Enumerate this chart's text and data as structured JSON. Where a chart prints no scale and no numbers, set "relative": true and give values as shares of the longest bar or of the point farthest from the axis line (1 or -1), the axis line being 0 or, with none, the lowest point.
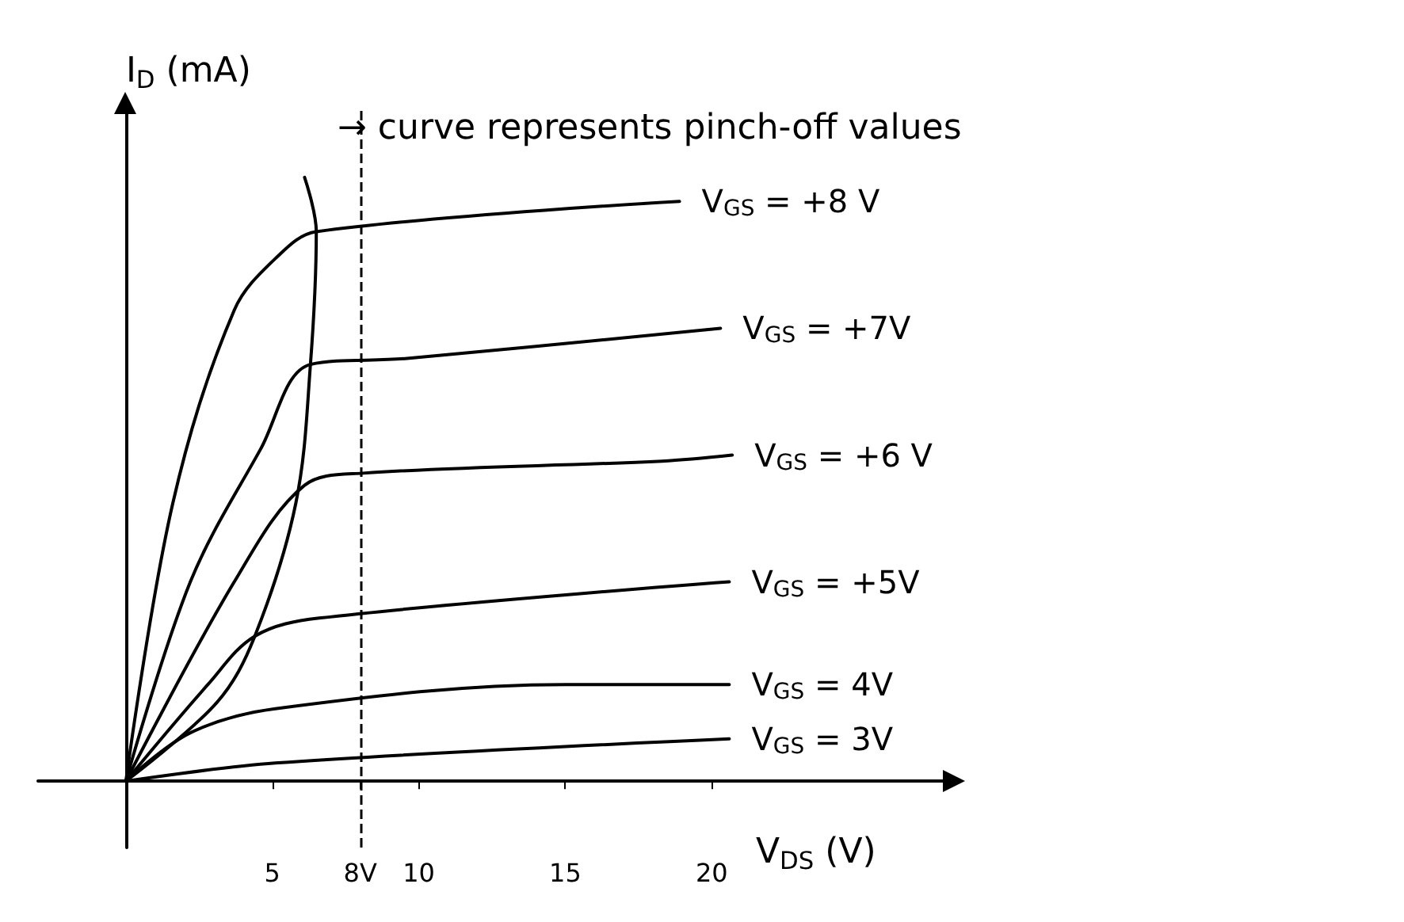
{
  "chart_data": {
    "type": "line",
    "relative": true,
    "xlabel": "V$_{DS}$ (V)",
    "ylabel": "I$_{D}$ (mA)",
    "xlim": [
      -3,
      28
    ],
    "xticks": [
      5,
      {
        "value": 8,
        "label": "8V"
      },
      10,
      15,
      20
    ],
    "annotations": [
      "→ curve represents pinch-off values"
    ],
    "ref_lines": [
      {
        "axis": "x",
        "value": 8,
        "line_style": "dashed",
        "color": "#000000"
      }
    ],
    "line_style": "solid",
    "series": [
      {
        "name": "V$_{GS}$ = +8 V",
        "color": "#000000",
        "x": [
          0,
          1.6,
          3.7,
          5.2,
          6.5,
          18.9
        ],
        "values": [
          0,
          0.46,
          0.78,
          0.87,
          0.91,
          0.96
        ]
      },
      {
        "name": "V$_{GS}$ = +7V",
        "color": "#000000",
        "x": [
          0,
          2.2,
          4.6,
          6.3,
          9.6,
          20.3
        ],
        "values": [
          0,
          0.33,
          0.55,
          0.69,
          0.7,
          0.75
        ]
      },
      {
        "name": "V$_{GS}$ = +6 V",
        "color": "#000000",
        "x": [
          0,
          3.7,
          6.1,
          8.1,
          18.3,
          20.7
        ],
        "values": [
          0,
          0.33,
          0.49,
          0.51,
          0.53,
          0.54
        ]
      },
      {
        "name": "V$_{GS}$ = +5V",
        "color": "#000000",
        "x": [
          0,
          2.8,
          4.4,
          6.6,
          20.6
        ],
        "values": [
          0,
          0.16,
          0.24,
          0.27,
          0.33
        ]
      },
      {
        "name": "V$_{GS}$ = 4V",
        "color": "#000000",
        "x": [
          0,
          2.2,
          5.1,
          15,
          20.6
        ],
        "values": [
          0,
          0.08,
          0.12,
          0.16,
          0.16
        ]
      },
      {
        "name": "V$_{GS}$ = 3V",
        "color": "#000000",
        "x": [
          0,
          5.1,
          20.6
        ],
        "values": [
          0,
          0.03,
          0.07
        ]
      },
      {
        "color": "#000000",
        "x": [
          0,
          3.1,
          4.4,
          5.8,
          6.3,
          6.5,
          6.1
        ],
        "values": [
          0,
          0.13,
          0.24,
          0.46,
          0.69,
          0.91,
          1.0
        ]
      }
    ]
  }
}
